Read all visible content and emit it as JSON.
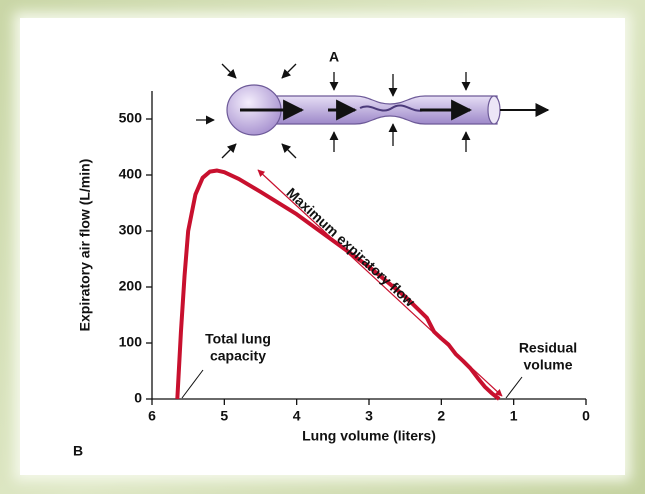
{
  "chart_data": {
    "type": "line",
    "x": [
      5.65,
      5.6,
      5.55,
      5.5,
      5.4,
      5.3,
      5.2,
      5.1,
      5.0,
      4.8,
      4.5,
      4.0,
      3.5,
      3.0,
      2.5,
      2.2,
      2.1,
      2.0,
      1.9,
      1.8,
      1.7,
      1.6,
      1.5,
      1.4,
      1.3,
      1.2
    ],
    "values": [
      0,
      120,
      220,
      300,
      365,
      395,
      406,
      408,
      405,
      393,
      370,
      330,
      283,
      236,
      183,
      145,
      120,
      108,
      97,
      80,
      68,
      55,
      38,
      22,
      10,
      0
    ],
    "color": "#c8102e",
    "xlim": [
      6,
      0
    ],
    "xticks": [
      6,
      5,
      4,
      3,
      2,
      1,
      0
    ],
    "ylim": [
      0,
      550
    ],
    "yticks": [
      0,
      100,
      200,
      300,
      400,
      500
    ],
    "x_label": "Lung volume (liters)",
    "y_label": "Expiratory air flow (L/min)",
    "annotations": [
      [
        "A"
      ],
      [
        "B"
      ],
      [
        "Total lung",
        "capacity"
      ],
      [
        "Residual",
        "volume"
      ],
      [
        "Maximum expiratory flow"
      ]
    ]
  }
}
